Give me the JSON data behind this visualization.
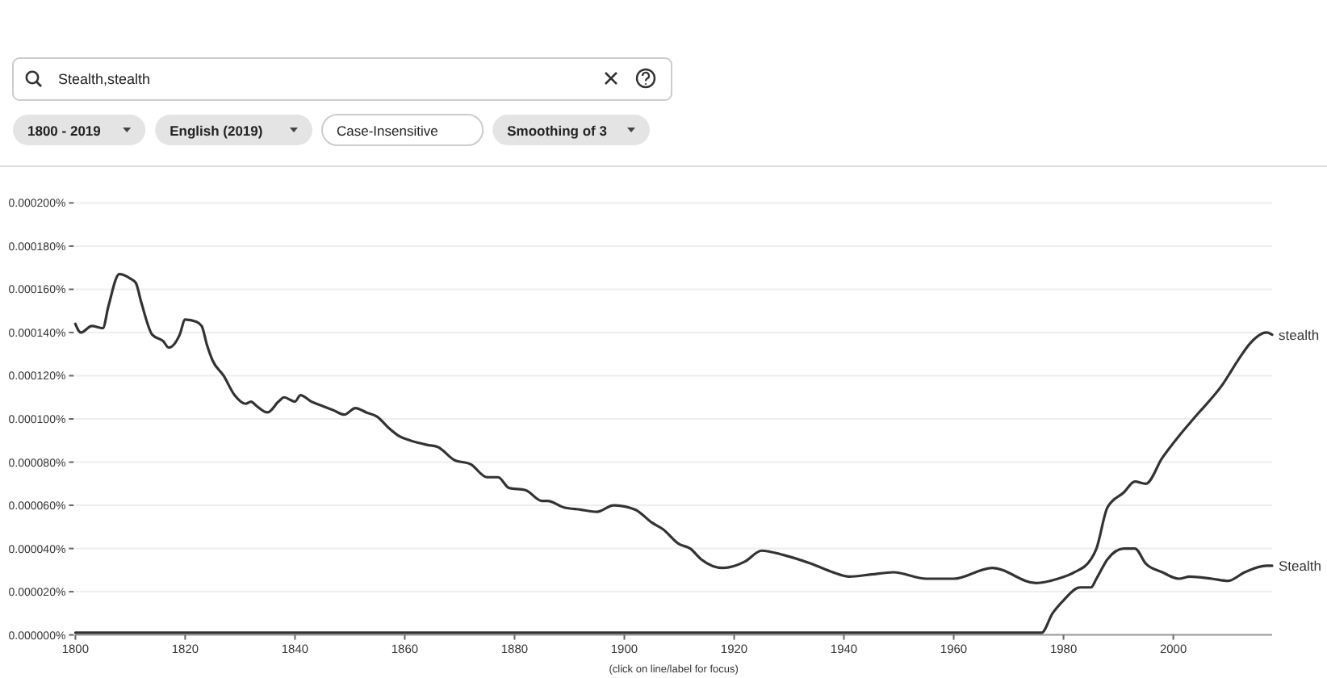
{
  "chart_data": {
    "type": "line",
    "xlim": [
      1800,
      2018
    ],
    "xticks": [
      1800,
      1820,
      1840,
      1860,
      1880,
      1900,
      1920,
      1940,
      1960,
      1980,
      2000
    ],
    "ylim": [
      0,
      0.0002
    ],
    "yticks": [
      {
        "value": 0,
        "label": "0.000000%"
      },
      {
        "value": 2e-05,
        "label": "0.000020%"
      },
      {
        "value": 4e-05,
        "label": "0.000040%"
      },
      {
        "value": 6e-05,
        "label": "0.000060%"
      },
      {
        "value": 8e-05,
        "label": "0.000080%"
      },
      {
        "value": 0.0001,
        "label": "0.000100%"
      },
      {
        "value": 0.00012,
        "label": "0.000120%"
      },
      {
        "value": 0.00014,
        "label": "0.000140%"
      },
      {
        "value": 0.00016,
        "label": "0.000160%"
      },
      {
        "value": 0.00018,
        "label": "0.000180%"
      },
      {
        "value": 0.0002,
        "label": "0.000200%"
      }
    ],
    "grid": "y",
    "marker": "none",
    "line_style": "solid",
    "annotations": [
      "Stealth,stealth",
      "1800 - 2019",
      "English (2019)",
      "Case-Insensitive",
      "Smoothing of 3",
      "(click on line/label for focus)"
    ],
    "series": [
      {
        "name": "stealth",
        "color": "#333333",
        "x": [
          1800,
          1801,
          1803,
          1805,
          1806,
          1808,
          1810,
          1811,
          1812,
          1814,
          1816,
          1817,
          1819,
          1820,
          1822,
          1823,
          1824,
          1825,
          1827,
          1829,
          1831,
          1832,
          1833,
          1835,
          1837,
          1838,
          1840,
          1841,
          1843,
          1845,
          1847,
          1849,
          1851,
          1853,
          1855,
          1857,
          1859,
          1861,
          1864,
          1866,
          1869,
          1872,
          1875,
          1877,
          1879,
          1882,
          1885,
          1886,
          1889,
          1892,
          1895,
          1898,
          1902,
          1905,
          1907,
          1910,
          1912,
          1914,
          1918,
          1922,
          1925,
          1929,
          1934,
          1938,
          1941,
          1945,
          1949,
          1955,
          1960,
          1967,
          1975,
          1979,
          1982,
          1985,
          1986,
          1988,
          1991,
          1993,
          1995,
          1998,
          2001,
          2004,
          2009,
          2012,
          2014,
          2017,
          2018
        ],
        "values": [
          0.000144,
          0.00014,
          0.000143,
          0.000142,
          0.000152,
          0.000167,
          0.000165,
          0.000163,
          0.000154,
          0.000139,
          0.000136,
          0.000133,
          0.000139,
          0.000146,
          0.000145,
          0.000143,
          0.000134,
          0.000127,
          0.00012,
          0.000111,
          0.000107,
          0.000108,
          0.000106,
          0.000103,
          0.000108,
          0.00011,
          0.000108,
          0.000111,
          0.000108,
          0.000106,
          0.000104,
          0.000102,
          0.000105,
          0.000103,
          0.000101,
          9.6e-05,
          9.2e-05,
          9e-05,
          8.8e-05,
          8.7e-05,
          8.1e-05,
          7.9e-05,
          7.3e-05,
          7.3e-05,
          6.8e-05,
          6.7e-05,
          6.2e-05,
          6.2e-05,
          5.9e-05,
          5.8e-05,
          5.7e-05,
          6e-05,
          5.8e-05,
          5.2e-05,
          4.9e-05,
          4.2e-05,
          4e-05,
          3.5e-05,
          3.1e-05,
          3.4e-05,
          3.9e-05,
          3.7e-05,
          3.3e-05,
          2.9e-05,
          2.7e-05,
          2.8e-05,
          2.9e-05,
          2.6e-05,
          2.6e-05,
          3.1e-05,
          2.4e-05,
          2.6e-05,
          2.9e-05,
          3.5e-05,
          4e-05,
          5.9e-05,
          6.6e-05,
          7.1e-05,
          7e-05,
          8.2e-05,
          9.2e-05,
          0.000101,
          0.000116,
          0.000128,
          0.000135,
          0.00014,
          0.000139
        ]
      },
      {
        "name": "Stealth",
        "color": "#333333",
        "x": [
          1800,
          1820,
          1840,
          1860,
          1880,
          1900,
          1920,
          1940,
          1960,
          1976,
          1978,
          1980,
          1983,
          1985,
          1986,
          1988,
          1991,
          1993,
          1995,
          1998,
          2001,
          2003,
          2007,
          2010,
          2013,
          2017,
          2018
        ],
        "values": [
          1e-06,
          1e-06,
          1e-06,
          1e-06,
          1e-06,
          1e-06,
          1e-06,
          1e-06,
          1e-06,
          1e-06,
          1e-05,
          1.6e-05,
          2.2e-05,
          2.2e-05,
          2.6e-05,
          3.5e-05,
          4e-05,
          4e-05,
          3.3e-05,
          2.9e-05,
          2.6e-05,
          2.7e-05,
          2.6e-05,
          2.5e-05,
          2.9e-05,
          3.2e-05,
          3.2e-05
        ]
      }
    ]
  }
}
